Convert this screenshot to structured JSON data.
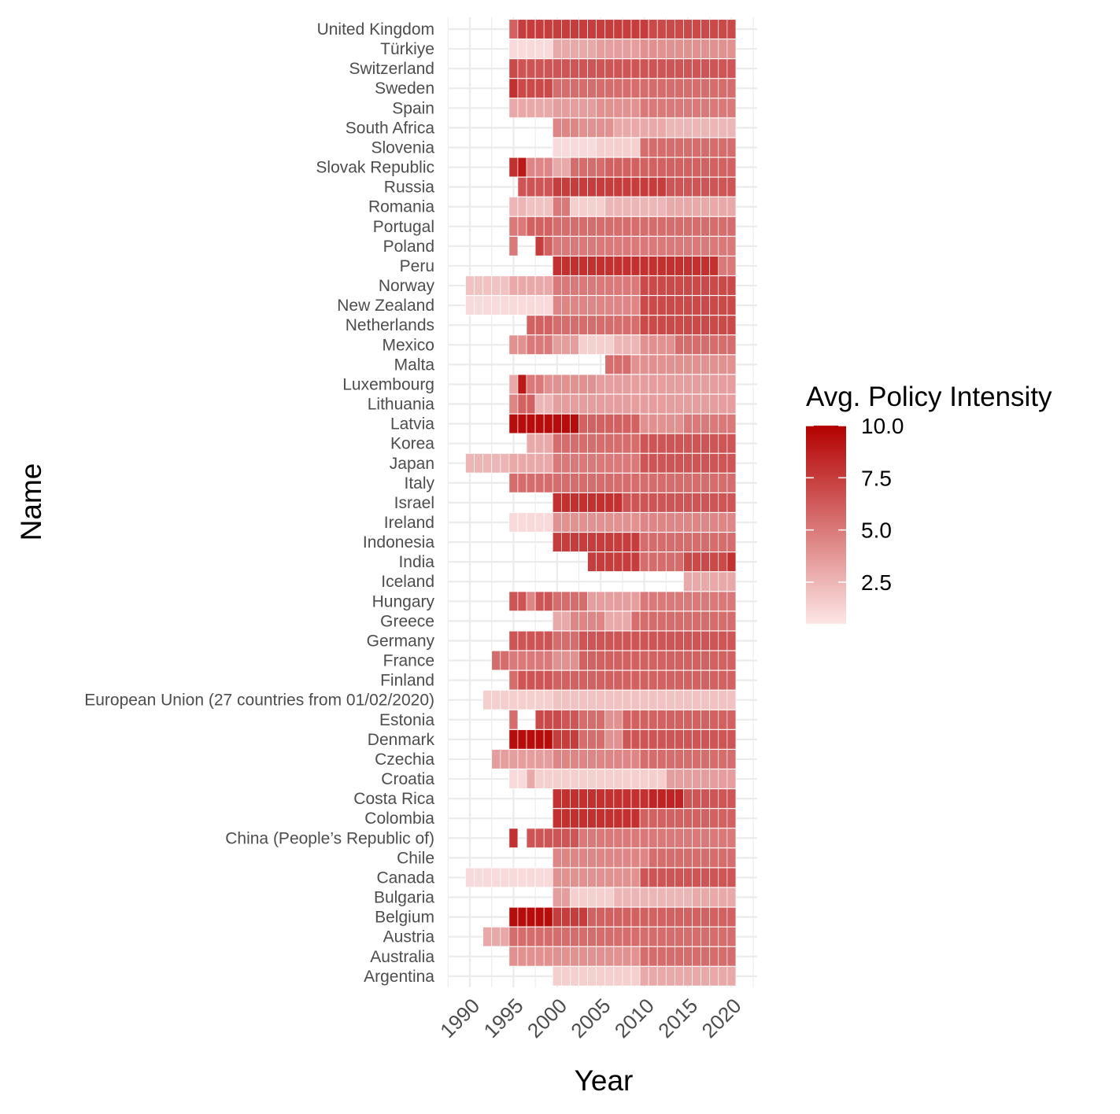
{
  "chart_data": {
    "type": "heatmap",
    "xlabel": "Year",
    "ylabel": "Name",
    "x_range": [
      1990,
      2020
    ],
    "x_ticks": [
      "1990",
      "1995",
      "2000",
      "2005",
      "2010",
      "2015",
      "2020"
    ],
    "legend": {
      "title": "Avg. Policy Intensity",
      "ticks": [
        "10.0",
        "7.5",
        "5.0",
        "2.5"
      ],
      "range": [
        0.5,
        10
      ],
      "placement": "right",
      "low_color": "#fde6e6",
      "high_color": "#b30000"
    },
    "grid": true,
    "countries": [
      "United Kingdom",
      "Türkiye",
      "Switzerland",
      "Sweden",
      "Spain",
      "South Africa",
      "Slovenia",
      "Slovak Republic",
      "Russia",
      "Romania",
      "Portugal",
      "Poland",
      "Peru",
      "Norway",
      "New Zealand",
      "Netherlands",
      "Mexico",
      "Malta",
      "Luxembourg",
      "Lithuania",
      "Latvia",
      "Korea",
      "Japan",
      "Italy",
      "Israel",
      "Ireland",
      "Indonesia",
      "India",
      "Iceland",
      "Hungary",
      "Greece",
      "Germany",
      "France",
      "Finland",
      "European Union (27 countries from 01/02/2020)",
      "Estonia",
      "Denmark",
      "Czechia",
      "Croatia",
      "Costa Rica",
      "Colombia",
      "China (People’s Republic of)",
      "Chile",
      "Canada",
      "Bulgaria",
      "Belgium",
      "Austria",
      "Australia",
      "Argentina"
    ],
    "segments": {
      "United Kingdom": [
        [
          1995,
          1995,
          6
        ],
        [
          1996,
          1999,
          7.5
        ],
        [
          2000,
          2010,
          7.5
        ],
        [
          2011,
          2020,
          7
        ]
      ],
      "Türkiye": [
        [
          1995,
          1999,
          1
        ],
        [
          2000,
          2004,
          3
        ],
        [
          2005,
          2009,
          3.5
        ],
        [
          2010,
          2020,
          4
        ]
      ],
      "Switzerland": [
        [
          1995,
          1995,
          7
        ],
        [
          1996,
          1999,
          6.5
        ],
        [
          2000,
          2020,
          6.5
        ]
      ],
      "Sweden": [
        [
          1995,
          1995,
          8
        ],
        [
          1996,
          1999,
          7
        ],
        [
          2000,
          2020,
          5.5
        ]
      ],
      "Spain": [
        [
          1995,
          1999,
          3
        ],
        [
          2000,
          2004,
          3.5
        ],
        [
          2005,
          2009,
          4
        ],
        [
          2010,
          2020,
          5
        ]
      ],
      "South Africa": [
        [
          2000,
          2002,
          4.5
        ],
        [
          2003,
          2006,
          4
        ],
        [
          2007,
          2012,
          3
        ],
        [
          2013,
          2020,
          2.5
        ]
      ],
      "Slovenia": [
        [
          2000,
          2004,
          1
        ],
        [
          2005,
          2009,
          1.5
        ],
        [
          2010,
          2020,
          5.5
        ]
      ],
      "Slovak Republic": [
        [
          1995,
          1995,
          8
        ],
        [
          1996,
          1996,
          9
        ],
        [
          1997,
          1999,
          4.5
        ],
        [
          2000,
          2001,
          3
        ],
        [
          2002,
          2005,
          5.5
        ],
        [
          2006,
          2020,
          6
        ]
      ],
      "Russia": [
        [
          1996,
          1999,
          6.5
        ],
        [
          2000,
          2012,
          7.5
        ],
        [
          2013,
          2016,
          6.5
        ],
        [
          2017,
          2020,
          6.5
        ]
      ],
      "Romania": [
        [
          1995,
          1996,
          2.5
        ],
        [
          1997,
          1999,
          2
        ],
        [
          2000,
          2001,
          5
        ],
        [
          2002,
          2005,
          1.5
        ],
        [
          2006,
          2012,
          2.5
        ],
        [
          2013,
          2020,
          3
        ]
      ],
      "Portugal": [
        [
          1995,
          1996,
          5
        ],
        [
          1997,
          1999,
          6
        ],
        [
          2000,
          2020,
          5.5
        ]
      ],
      "Poland": [
        [
          1995,
          1995,
          5
        ],
        [
          1998,
          1998,
          7.5
        ],
        [
          1999,
          1999,
          6
        ],
        [
          2000,
          2020,
          5
        ]
      ],
      "Peru": [
        [
          2000,
          2018,
          8
        ],
        [
          2019,
          2020,
          5
        ]
      ],
      "Norway": [
        [
          1990,
          1994,
          2
        ],
        [
          1995,
          1999,
          3
        ],
        [
          2000,
          2009,
          5
        ],
        [
          2010,
          2020,
          7
        ]
      ],
      "New Zealand": [
        [
          1990,
          1999,
          1
        ],
        [
          2000,
          2009,
          4.5
        ],
        [
          2010,
          2020,
          7
        ]
      ],
      "Netherlands": [
        [
          1997,
          1999,
          6
        ],
        [
          2000,
          2009,
          5.5
        ],
        [
          2010,
          2020,
          7
        ]
      ],
      "Mexico": [
        [
          1995,
          1996,
          4
        ],
        [
          1997,
          1999,
          5
        ],
        [
          2000,
          2002,
          3.5
        ],
        [
          2003,
          2006,
          1.5
        ],
        [
          2007,
          2009,
          2.5
        ],
        [
          2010,
          2013,
          4
        ],
        [
          2014,
          2020,
          5.5
        ]
      ],
      "Malta": [
        [
          2006,
          2008,
          5.5
        ],
        [
          2009,
          2020,
          4
        ]
      ],
      "Luxembourg": [
        [
          1995,
          1995,
          3
        ],
        [
          1996,
          1996,
          9
        ],
        [
          1997,
          1998,
          5
        ],
        [
          1999,
          2004,
          4
        ],
        [
          2005,
          2020,
          3.5
        ]
      ],
      "Lithuania": [
        [
          1995,
          1995,
          4.5
        ],
        [
          1996,
          1997,
          6
        ],
        [
          1998,
          1999,
          2.5
        ],
        [
          2000,
          2020,
          3.5
        ]
      ],
      "Latvia": [
        [
          1995,
          2002,
          9.5
        ],
        [
          2003,
          2009,
          6
        ],
        [
          2010,
          2014,
          4
        ],
        [
          2015,
          2020,
          5
        ]
      ],
      "Korea": [
        [
          1997,
          1999,
          3
        ],
        [
          2000,
          2009,
          5.5
        ],
        [
          2010,
          2020,
          6.5
        ]
      ],
      "Japan": [
        [
          1990,
          1994,
          2.5
        ],
        [
          1995,
          1999,
          3
        ],
        [
          2000,
          2009,
          5
        ],
        [
          2010,
          2020,
          6.5
        ]
      ],
      "Italy": [
        [
          1995,
          1999,
          5.5
        ],
        [
          2000,
          2020,
          5.5
        ]
      ],
      "Israel": [
        [
          2000,
          2007,
          8
        ],
        [
          2008,
          2020,
          6.5
        ]
      ],
      "Ireland": [
        [
          1995,
          1999,
          1
        ],
        [
          2000,
          2009,
          4
        ],
        [
          2010,
          2020,
          4.5
        ]
      ],
      "Indonesia": [
        [
          2000,
          2009,
          7.5
        ],
        [
          2010,
          2020,
          5.5
        ]
      ],
      "India": [
        [
          2004,
          2009,
          7.5
        ],
        [
          2010,
          2014,
          5.5
        ],
        [
          2015,
          2019,
          7
        ],
        [
          2020,
          2020,
          8
        ]
      ],
      "Iceland": [
        [
          2015,
          2020,
          3
        ]
      ],
      "Hungary": [
        [
          1995,
          1996,
          6.5
        ],
        [
          1997,
          1997,
          4.5
        ],
        [
          1998,
          1999,
          6.5
        ],
        [
          2000,
          2003,
          5.5
        ],
        [
          2004,
          2009,
          3.5
        ],
        [
          2010,
          2020,
          5
        ]
      ],
      "Greece": [
        [
          2000,
          2001,
          3
        ],
        [
          2002,
          2005,
          4.5
        ],
        [
          2006,
          2008,
          3
        ],
        [
          2009,
          2020,
          5.5
        ]
      ],
      "Germany": [
        [
          1995,
          1999,
          6.5
        ],
        [
          2000,
          2002,
          5.5
        ],
        [
          2003,
          2020,
          6.5
        ]
      ],
      "France": [
        [
          1993,
          1994,
          5.5
        ],
        [
          1995,
          1999,
          5
        ],
        [
          2000,
          2002,
          4
        ],
        [
          2003,
          2020,
          6
        ]
      ],
      "Finland": [
        [
          1995,
          1995,
          5.5
        ],
        [
          1996,
          1999,
          6.5
        ],
        [
          2000,
          2020,
          6
        ]
      ],
      "European Union (27 countries from 01/02/2020)": [
        [
          1992,
          1999,
          1.5
        ],
        [
          2000,
          2020,
          2
        ]
      ],
      "Estonia": [
        [
          1995,
          1995,
          5.5
        ],
        [
          1998,
          2000,
          7
        ],
        [
          2001,
          2002,
          6.5
        ],
        [
          2003,
          2005,
          5.5
        ],
        [
          2006,
          2007,
          4
        ],
        [
          2008,
          2020,
          6
        ]
      ],
      "Denmark": [
        [
          1995,
          1999,
          9.5
        ],
        [
          2000,
          2002,
          7.5
        ],
        [
          2003,
          2005,
          5.5
        ],
        [
          2006,
          2007,
          4
        ],
        [
          2008,
          2020,
          6.5
        ]
      ],
      "Czechia": [
        [
          1993,
          1999,
          3.5
        ],
        [
          2000,
          2009,
          4.5
        ],
        [
          2010,
          2020,
          5.5
        ]
      ],
      "Croatia": [
        [
          1995,
          1996,
          1
        ],
        [
          1997,
          1997,
          3
        ],
        [
          1998,
          2012,
          1.5
        ],
        [
          2013,
          2020,
          3.5
        ]
      ],
      "Costa Rica": [
        [
          2000,
          2010,
          8
        ],
        [
          2011,
          2014,
          8.5
        ],
        [
          2015,
          2020,
          6.5
        ]
      ],
      "Colombia": [
        [
          2000,
          2009,
          8
        ],
        [
          2010,
          2020,
          6
        ]
      ],
      "China (People’s Republic of)": [
        [
          1995,
          1995,
          8
        ],
        [
          1997,
          1999,
          6.5
        ],
        [
          2000,
          2002,
          6.5
        ],
        [
          2003,
          2020,
          5
        ]
      ],
      "Chile": [
        [
          2000,
          2010,
          4.5
        ],
        [
          2011,
          2020,
          5.5
        ]
      ],
      "Canada": [
        [
          1990,
          1999,
          1
        ],
        [
          2000,
          2009,
          4
        ],
        [
          2010,
          2020,
          6.5
        ]
      ],
      "Bulgaria": [
        [
          2000,
          2001,
          3.5
        ],
        [
          2002,
          2006,
          1.5
        ],
        [
          2007,
          2015,
          2.5
        ],
        [
          2016,
          2020,
          3
        ]
      ],
      "Belgium": [
        [
          1995,
          1999,
          9.5
        ],
        [
          2000,
          2003,
          7.5
        ],
        [
          2004,
          2020,
          6
        ]
      ],
      "Austria": [
        [
          1992,
          1994,
          3
        ],
        [
          1995,
          1999,
          5.5
        ],
        [
          2000,
          2020,
          5.5
        ]
      ],
      "Australia": [
        [
          1995,
          1999,
          4
        ],
        [
          2000,
          2009,
          4
        ],
        [
          2010,
          2020,
          5.5
        ]
      ],
      "Argentina": [
        [
          2000,
          2009,
          1.5
        ],
        [
          2010,
          2020,
          3
        ]
      ]
    }
  }
}
